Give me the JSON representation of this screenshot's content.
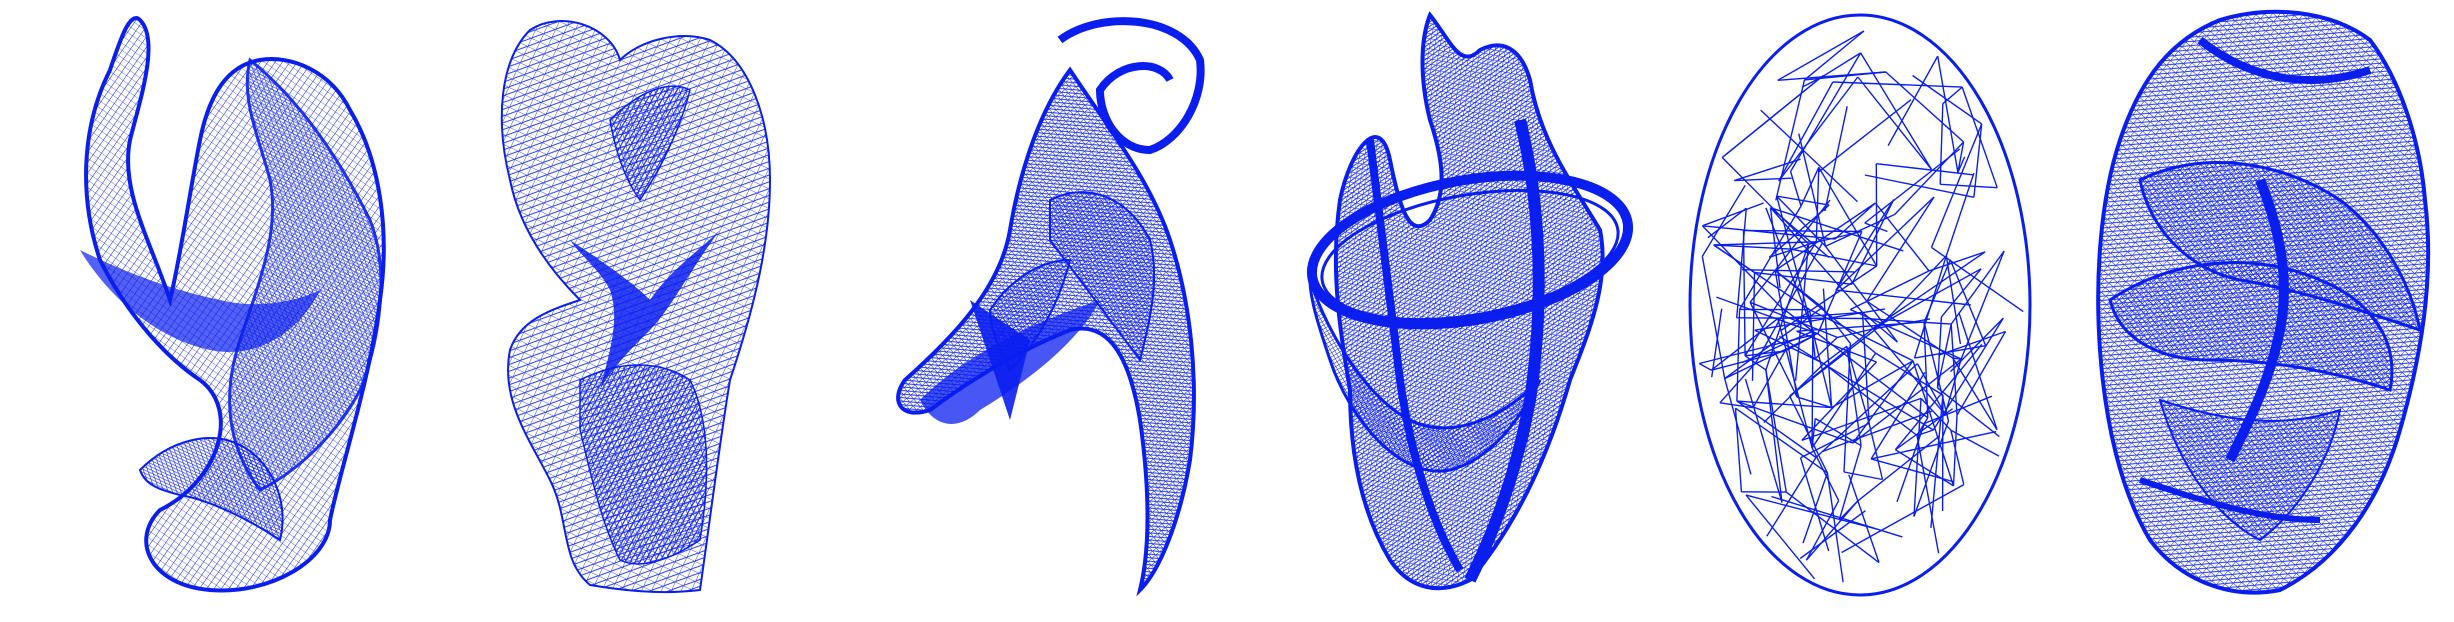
{
  "figure": {
    "panel_count": 6,
    "mesh_color": "#0a1ef0",
    "caption_color": "#1e8a1e",
    "panels": [
      {
        "id": "mesh-1",
        "style": "ribbon-surface"
      },
      {
        "id": "mesh-2",
        "style": "noisy-ribbon-surface"
      },
      {
        "id": "mesh-3",
        "style": "twisted-tube-surface"
      },
      {
        "id": "mesh-4",
        "style": "looped-ribbon-surface"
      },
      {
        "id": "mesh-5",
        "style": "random-edge-cloud"
      },
      {
        "id": "mesh-6",
        "style": "overlapping-sheets-surface"
      }
    ]
  }
}
